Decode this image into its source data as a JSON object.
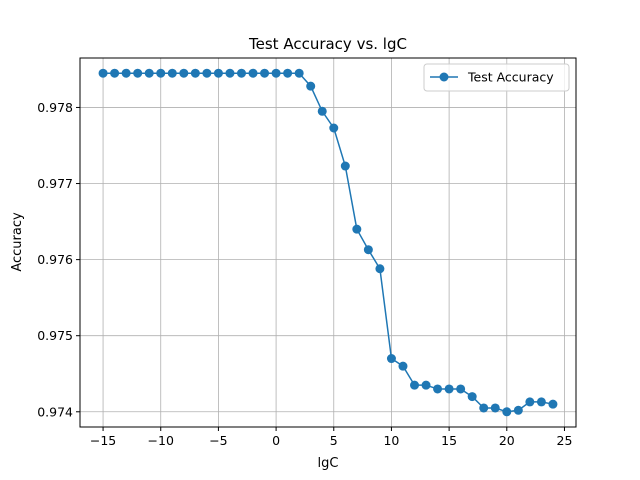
{
  "chart_data": {
    "type": "line",
    "title": "Test Accuracy vs. lgC",
    "xlabel": "lgC",
    "ylabel": "Accuracy",
    "xlim": [
      -17,
      26
    ],
    "ylim": [
      0.9738,
      0.97865
    ],
    "xticks": [
      -15,
      -10,
      -5,
      0,
      5,
      10,
      15,
      20,
      25
    ],
    "xtick_labels": [
      "−15",
      "−10",
      "−5",
      "0",
      "5",
      "10",
      "15",
      "20",
      "25"
    ],
    "yticks": [
      0.974,
      0.975,
      0.976,
      0.977,
      0.978
    ],
    "ytick_labels": [
      "0.974",
      "0.975",
      "0.976",
      "0.977",
      "0.978"
    ],
    "grid": true,
    "legend_position": "top-right",
    "color": "#1f77b4",
    "marker": "circle",
    "series": [
      {
        "name": "Test Accuracy",
        "x": [
          -15,
          -14,
          -13,
          -12,
          -11,
          -10,
          -9,
          -8,
          -7,
          -6,
          -5,
          -4,
          -3,
          -2,
          -1,
          0,
          1,
          2,
          3,
          4,
          5,
          6,
          7,
          8,
          9,
          10,
          11,
          12,
          13,
          14,
          15,
          16,
          17,
          18,
          19,
          20,
          21,
          22,
          23,
          24
        ],
        "y": [
          0.97845,
          0.97845,
          0.97845,
          0.97845,
          0.97845,
          0.97845,
          0.97845,
          0.97845,
          0.97845,
          0.97845,
          0.97845,
          0.97845,
          0.97845,
          0.97845,
          0.97845,
          0.97845,
          0.97845,
          0.97845,
          0.97828,
          0.97795,
          0.97773,
          0.97723,
          0.9764,
          0.97613,
          0.97588,
          0.9747,
          0.9746,
          0.97435,
          0.97435,
          0.9743,
          0.9743,
          0.9743,
          0.9742,
          0.97405,
          0.97405,
          0.974,
          0.97402,
          0.97413,
          0.97413,
          0.9741
        ]
      }
    ]
  }
}
